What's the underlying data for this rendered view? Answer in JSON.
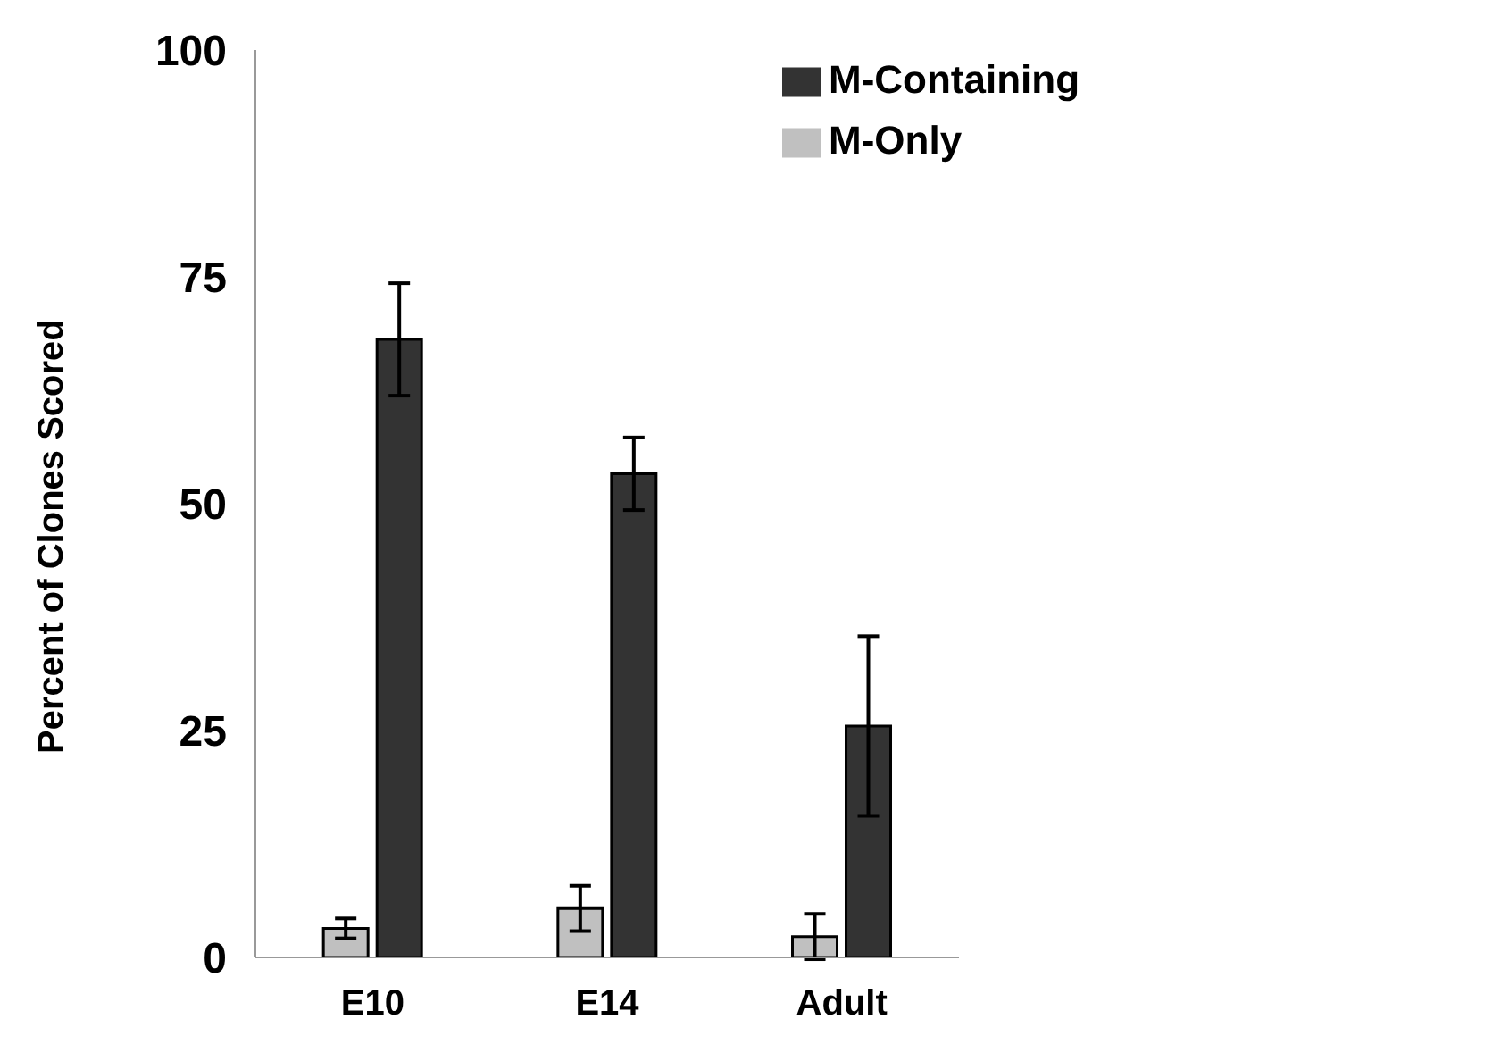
{
  "chart_data": {
    "type": "bar",
    "ylabel": "Percent of Clones Scored",
    "categories": [
      "E10",
      "E14",
      "Adult"
    ],
    "series": [
      {
        "name": "M-Only",
        "color": "#c0c0c0",
        "values": [
          3.2,
          5.4,
          2.3
        ],
        "errors": [
          1.1,
          2.5,
          2.5
        ]
      },
      {
        "name": "M-Containing",
        "color": "#333333",
        "values": [
          68.1,
          53.3,
          25.5
        ],
        "errors": [
          6.2,
          4.0,
          9.9
        ]
      }
    ],
    "ylim": [
      0,
      100
    ],
    "yticks": [
      0,
      25,
      50,
      75,
      100
    ],
    "grid": false,
    "legend": "top right"
  }
}
